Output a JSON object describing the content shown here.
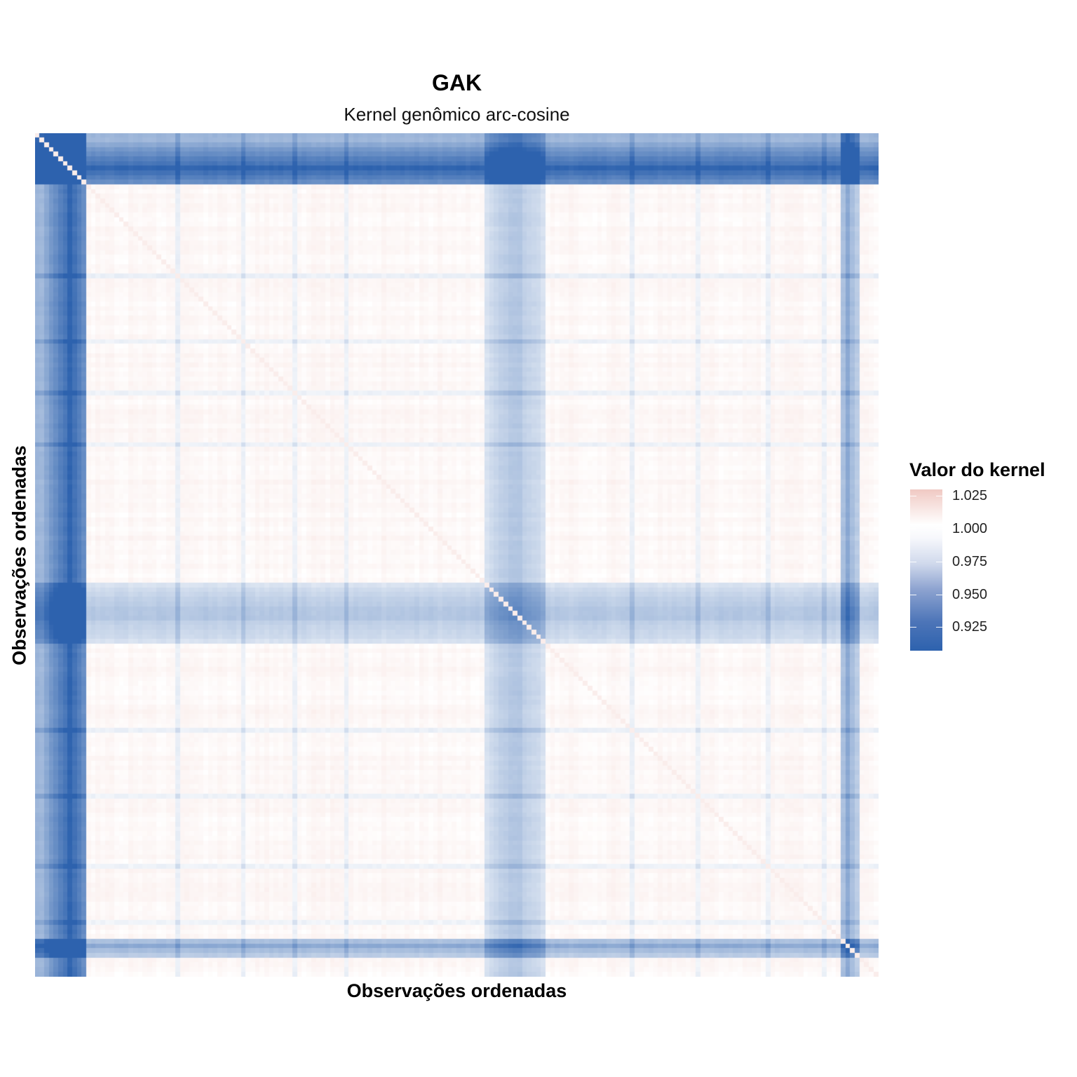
{
  "chart_data": {
    "type": "heatmap",
    "title": "GAK",
    "subtitle": "Kernel genômico arc-cosine",
    "xlabel": "Observações ordenadas",
    "ylabel": "Observações ordenadas",
    "legend": {
      "title": "Valor do kernel",
      "position": "right",
      "ticks": [
        1.025,
        1.0,
        0.975,
        0.95,
        0.925
      ],
      "tick_labels": [
        "1.025",
        "1.000",
        "0.975",
        "0.950",
        "0.925"
      ],
      "range": [
        0.907,
        1.03
      ]
    },
    "color_scale": {
      "low": "#2d62ae",
      "mid": "#ffffff",
      "high": "#f0c9c3",
      "midpoint": 1.0
    },
    "matrix": {
      "n": 180,
      "diagonal_value": 1.0,
      "baseline_value": 1.004,
      "low_blocks": [
        {
          "start": 0,
          "end": 10,
          "center": 7,
          "value": 0.91
        },
        {
          "start": 96,
          "end": 108,
          "center": 102,
          "value": 0.965
        },
        {
          "start": 172,
          "end": 175,
          "center": 173,
          "value": 0.95
        }
      ],
      "thin_lines": [
        30,
        44,
        55,
        66,
        127,
        141,
        156,
        168
      ]
    }
  }
}
